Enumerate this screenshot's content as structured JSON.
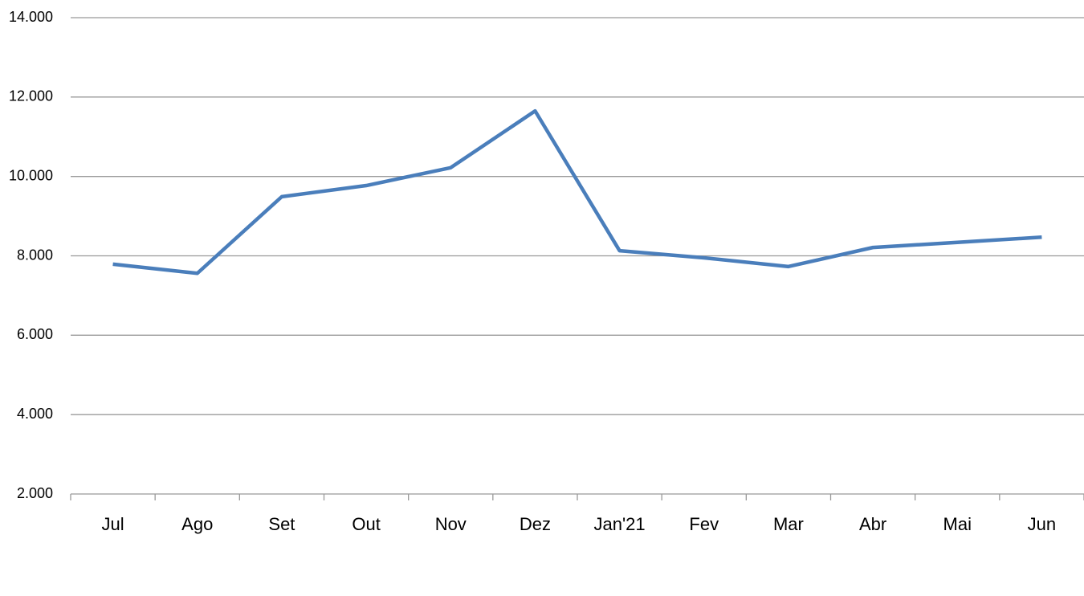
{
  "chart_data": {
    "type": "line",
    "categories": [
      "Jul",
      "Ago",
      "Set",
      "Out",
      "Nov",
      "Dez",
      "Jan'21",
      "Fev",
      "Mar",
      "Abr",
      "Mai",
      "Jun"
    ],
    "series": [
      {
        "color": "#4a7ebb",
        "values": [
          7790,
          7560,
          9490,
          9770,
          10220,
          11650,
          8130,
          7950,
          7730,
          8210,
          8340,
          8470
        ]
      }
    ],
    "ylim": [
      2000,
      14000
    ],
    "yticks": [
      {
        "value": 2000,
        "label": "2.000"
      },
      {
        "value": 4000,
        "label": "4.000"
      },
      {
        "value": 6000,
        "label": "6.000"
      },
      {
        "value": 8000,
        "label": "8.000"
      },
      {
        "value": 10000,
        "label": "10.000"
      },
      {
        "value": 12000,
        "label": "12.000"
      },
      {
        "value": 14000,
        "label": "14.000"
      }
    ],
    "grid": true
  }
}
